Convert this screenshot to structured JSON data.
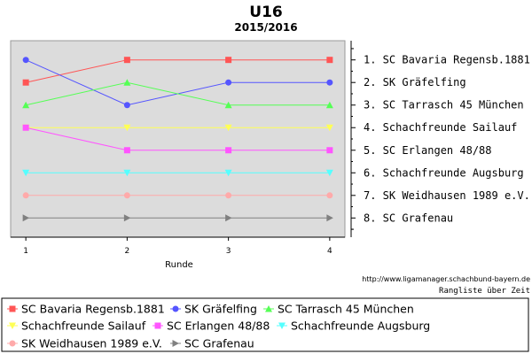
{
  "chart_data": {
    "type": "line",
    "title": "U16",
    "subtitle": "2015/2016",
    "xlabel": "Runde",
    "x": [
      1,
      2,
      3,
      4
    ],
    "xlim": [
      0.85,
      4.15
    ],
    "ylim": [
      8.85,
      0.15
    ],
    "y_reversed": true,
    "grid": false,
    "series": [
      {
        "name": "SC Bavaria Regensb.1881",
        "rank_label": "1. SC Bavaria Regensb.1881",
        "values": [
          2,
          1,
          1,
          1
        ],
        "color": "#ff5555",
        "marker": "square"
      },
      {
        "name": "SK Gräfelfing",
        "rank_label": "2. SK Gräfelfing",
        "values": [
          1,
          3,
          2,
          2
        ],
        "color": "#5555ff",
        "marker": "circle"
      },
      {
        "name": "SC Tarrasch 45 München",
        "rank_label": "3. SC Tarrasch 45 München",
        "values": [
          3,
          2,
          3,
          3
        ],
        "color": "#55ff55",
        "marker": "triangle-up"
      },
      {
        "name": "Schachfreunde Sailauf",
        "rank_label": "4. Schachfreunde Sailauf",
        "values": [
          4,
          4,
          4,
          4
        ],
        "color": "#ffff55",
        "marker": "triangle-down"
      },
      {
        "name": "SC Erlangen 48/88",
        "rank_label": "5. SC Erlangen 48/88",
        "values": [
          4,
          5,
          5,
          5
        ],
        "color": "#ff55ff",
        "marker": "square"
      },
      {
        "name": "Schachfreunde Augsburg",
        "rank_label": "6. Schachfreunde Augsburg",
        "values": [
          6,
          6,
          6,
          6
        ],
        "color": "#55ffff",
        "marker": "triangle-down"
      },
      {
        "name": "SK Weidhausen 1989 e.V.",
        "rank_label": "7. SK Weidhausen 1989 e.V.",
        "values": [
          7,
          7,
          7,
          7
        ],
        "color": "#ffaaaa",
        "marker": "circle"
      },
      {
        "name": "SC Grafenau",
        "rank_label": "8. SC Grafenau",
        "values": [
          8,
          8,
          8,
          8
        ],
        "color": "#808080",
        "marker": "triangle-right"
      }
    ],
    "legend_placement": "bottom",
    "source_url": "http://www.ligamanager.schachbund-bayern.de",
    "caption": "Rangliste über Zeit"
  }
}
